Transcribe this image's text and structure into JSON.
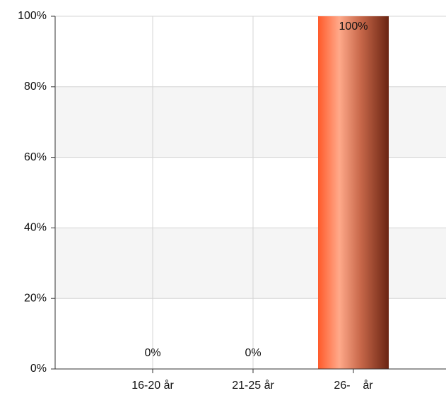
{
  "chart_data": {
    "type": "bar",
    "categories": [
      "16-20 år",
      "21-25 år",
      "26-    år"
    ],
    "values": [
      0,
      0,
      100
    ],
    "value_labels": [
      "0%",
      "0%",
      "100%"
    ],
    "color": "#ff6a3d",
    "ylim": [
      0,
      100
    ],
    "yticks": [
      {
        "value": 0,
        "label": "0%"
      },
      {
        "value": 20,
        "label": "20%"
      },
      {
        "value": 40,
        "label": "40%"
      },
      {
        "value": 60,
        "label": "60%"
      },
      {
        "value": 80,
        "label": "80%"
      },
      {
        "value": 100,
        "label": "100%"
      }
    ],
    "grid": true
  }
}
